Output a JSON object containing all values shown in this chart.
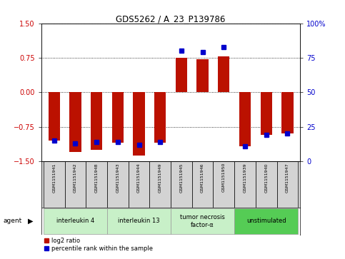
{
  "title": "GDS5262 / A_23_P139786",
  "samples": [
    "GSM1151941",
    "GSM1151942",
    "GSM1151948",
    "GSM1151943",
    "GSM1151944",
    "GSM1151949",
    "GSM1151945",
    "GSM1151946",
    "GSM1151950",
    "GSM1151939",
    "GSM1151940",
    "GSM1151947"
  ],
  "log2_ratio": [
    -1.05,
    -1.3,
    -1.25,
    -1.1,
    -1.38,
    -1.1,
    0.75,
    0.72,
    0.78,
    -1.18,
    -0.92,
    -0.9
  ],
  "percentile": [
    15,
    13,
    14,
    14,
    12,
    14,
    80,
    79,
    83,
    11,
    19,
    20
  ],
  "agents": [
    {
      "label": "interleukin 4",
      "start": 0,
      "end": 2,
      "color": "#c8f0c8"
    },
    {
      "label": "interleukin 13",
      "start": 3,
      "end": 5,
      "color": "#c8f0c8"
    },
    {
      "label": "tumor necrosis\nfactor-α",
      "start": 6,
      "end": 8,
      "color": "#c8f0c8"
    },
    {
      "label": "unstimulated",
      "start": 9,
      "end": 11,
      "color": "#55cc55"
    }
  ],
  "ylim": [
    -1.5,
    1.5
  ],
  "yticks_left": [
    -1.5,
    -0.75,
    0,
    0.75,
    1.5
  ],
  "yticks_right": [
    0,
    25,
    50,
    75,
    100
  ],
  "bar_color": "#bb1100",
  "dot_color": "#0000cc",
  "background_color": "#ffffff",
  "bar_width": 0.55,
  "dot_size": 4
}
